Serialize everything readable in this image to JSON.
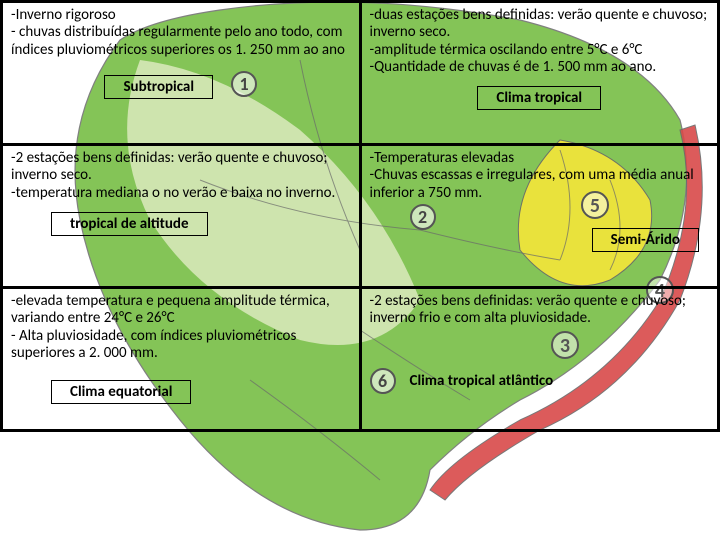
{
  "grid": {
    "rows": [
      {
        "left": {
          "desc": "-Inverno rigoroso\n- chuvas distribuídas regularmente pelo ano todo, com índices pluviométricos superiores os 1. 250 mm ao ano",
          "label": "Subtropical",
          "number": "1"
        },
        "right": {
          "desc": "-duas estações bens definidas: verão quente e chuvoso; inverno seco.\n-amplitude térmica oscilando entre 5°C e 6°C\n-Quantidade de chuvas é de 1. 500 mm ao ano.",
          "label": "Clima tropical"
        }
      },
      {
        "left": {
          "desc": "-2 estações bens definidas: verão quente e chuvoso; inverno seco.\n-temperatura mediana o no verão e baixa no inverno.",
          "label": "tropical de altitude"
        },
        "right": {
          "desc": "-Temperaturas elevadas\n-Chuvas escassas e irregulares, com uma média anual inferior a 750 mm.",
          "label": "Semi-Árido",
          "number": "2"
        }
      },
      {
        "left": {
          "desc": "-elevada temperatura e pequena amplitude térmica, variando entre 24°C e 26°C\n- Alta pluviosidade, com índices pluviométricos superiores a 2. 000 mm.",
          "label": "Clima equatorial"
        },
        "right": {
          "desc": "-2 estações bens definidas: verão quente e chuvoso; inverno frio e com alta pluviosidade.",
          "label": "Clima tropical atlântico",
          "number": "6"
        }
      }
    ]
  },
  "map": {
    "background_color": "#ffffff",
    "land_main": "#6fba3a",
    "land_light": "#d6e8b8",
    "coast_strip": "#d94a4a",
    "highlight_yellow": "#f5e63a",
    "ocean": "#ffffff",
    "border_color": "#6a6a6a",
    "extra_numbers": [
      "3",
      "4",
      "5"
    ]
  },
  "style": {
    "cell_border": "#000000",
    "font": "Calibri",
    "desc_fontsize": 15,
    "label_fontsize": 15,
    "number_fontsize": 18
  }
}
